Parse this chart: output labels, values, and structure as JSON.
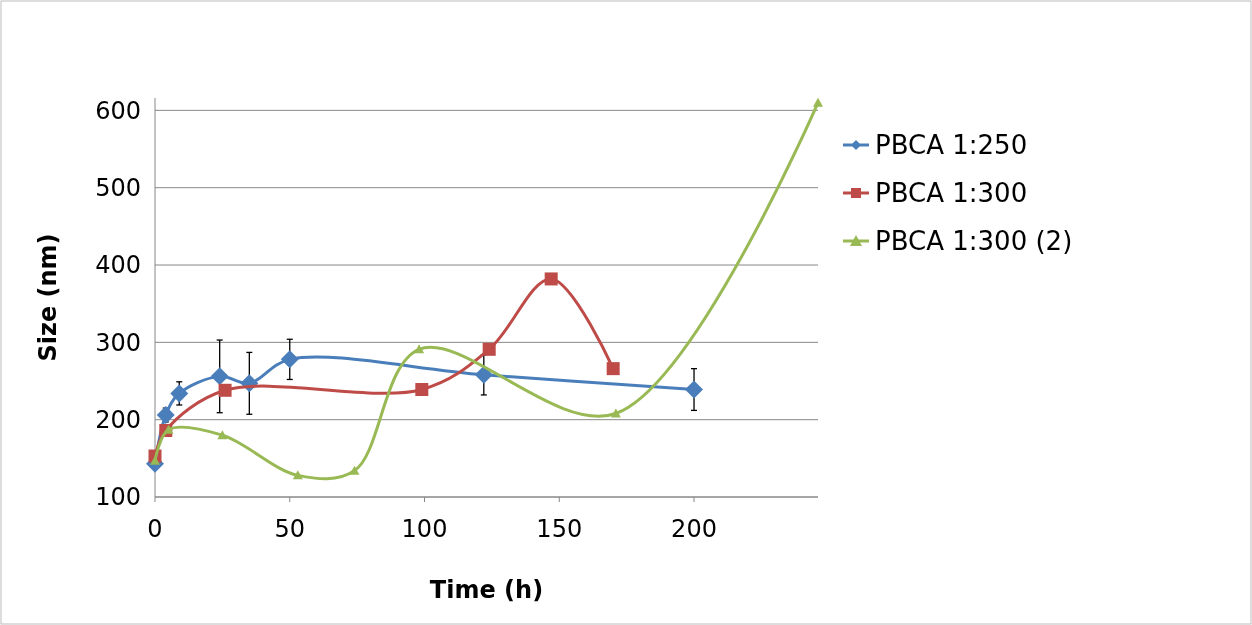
{
  "chart_data": {
    "type": "line",
    "xlabel": "Time (h)",
    "ylabel": "Size (nm)",
    "xlim": [
      0,
      246
    ],
    "xticks": [
      0,
      50,
      100,
      150,
      200
    ],
    "ylim": [
      100,
      616
    ],
    "yticks": [
      100,
      200,
      300,
      400,
      500,
      600
    ],
    "grid": "y",
    "legend": "right",
    "series": [
      {
        "name": "PBCA 1:250",
        "color": "#4a7ebb",
        "marker": "diamond",
        "x": [
          0,
          4,
          9,
          24,
          35,
          50,
          122,
          200
        ],
        "values": [
          143,
          206,
          234,
          256,
          247,
          278,
          258,
          239
        ],
        "errors": [
          null,
          9,
          15,
          47,
          40,
          26,
          26,
          27
        ]
      },
      {
        "name": "PBCA 1:300",
        "color": "#be4b48",
        "marker": "square",
        "x": [
          0,
          4,
          26,
          99,
          124,
          147,
          170
        ],
        "values": [
          153,
          186,
          238,
          239,
          291,
          382,
          266
        ]
      },
      {
        "name": "PBCA 1:300 (2)",
        "color": "#98b954",
        "marker": "triangle",
        "x": [
          0,
          5,
          25,
          53,
          74,
          98,
          171,
          246
        ],
        "values": [
          147,
          187,
          180,
          128,
          134,
          291,
          208,
          610
        ]
      }
    ]
  }
}
